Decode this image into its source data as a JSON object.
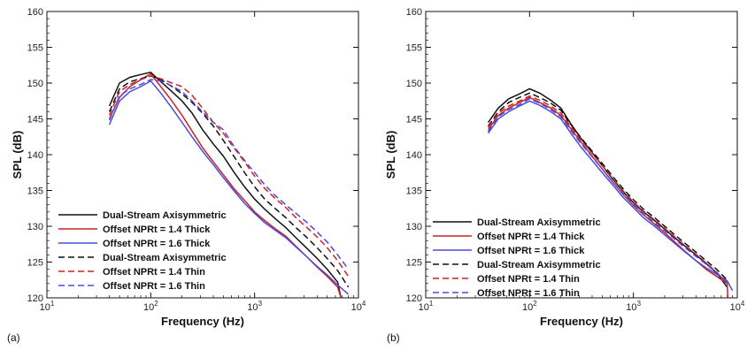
{
  "figure": {
    "panels": [
      "(a)",
      "(b)"
    ]
  },
  "colors": {
    "black": "#111111",
    "red": "#cc2222",
    "blue": "#4a4ae0"
  },
  "chart_data": [
    {
      "type": "line",
      "panel_label": "(a)",
      "xlabel": "Frequency (Hz)",
      "ylabel": "SPL (dB)",
      "xscale": "log",
      "xlim": [
        10,
        10000
      ],
      "ylim": [
        120,
        160
      ],
      "x_ticks": [
        {
          "value": 10,
          "base": "10",
          "exp": "1"
        },
        {
          "value": 100,
          "base": "10",
          "exp": "2"
        },
        {
          "value": 1000,
          "base": "10",
          "exp": "3"
        },
        {
          "value": 10000,
          "base": "10",
          "exp": "4"
        }
      ],
      "y_ticks": [
        120,
        125,
        130,
        135,
        140,
        145,
        150,
        155,
        160
      ],
      "grid": false,
      "legend_position": "lower-left",
      "series": [
        {
          "name": "Dual-Stream Axisymmetric",
          "color": "black",
          "dash": "solid",
          "x": [
            40,
            50,
            63,
            80,
            100,
            125,
            160,
            200,
            250,
            315,
            400,
            500,
            630,
            800,
            1000,
            1250,
            1600,
            2000,
            2500,
            3150,
            4000,
            5000,
            6300,
            6800
          ],
          "y": [
            146.8,
            150.0,
            150.8,
            151.2,
            151.5,
            150.2,
            148.8,
            147.5,
            145.8,
            143.5,
            141.5,
            139.8,
            137.6,
            135.5,
            133.8,
            132.4,
            131.0,
            129.8,
            128.4,
            127.0,
            125.5,
            124.0,
            122.2,
            120.0
          ]
        },
        {
          "name": "Offset NPRt = 1.4 Thick",
          "color": "red",
          "dash": "solid",
          "x": [
            40,
            50,
            63,
            80,
            100,
            125,
            160,
            200,
            250,
            315,
            400,
            500,
            630,
            800,
            1000,
            1250,
            1600,
            2000,
            2500,
            3150,
            4000,
            5000,
            6300,
            6800
          ],
          "y": [
            145.0,
            148.0,
            149.5,
            150.5,
            151.3,
            149.5,
            147.5,
            145.5,
            143.3,
            141.0,
            139.0,
            137.2,
            135.3,
            133.6,
            132.0,
            130.8,
            129.6,
            128.6,
            127.2,
            125.8,
            124.3,
            123.0,
            121.5,
            120.0
          ]
        },
        {
          "name": "Offset NPRt = 1.6 Thick",
          "color": "blue",
          "dash": "solid",
          "x": [
            40,
            50,
            63,
            80,
            100,
            125,
            160,
            200,
            250,
            315,
            400,
            500,
            630,
            800,
            1000,
            1250,
            1600,
            2000,
            2500,
            3150,
            4000,
            5000,
            6300,
            8000
          ],
          "y": [
            144.2,
            147.5,
            148.8,
            149.5,
            150.3,
            148.6,
            146.5,
            144.5,
            142.5,
            140.5,
            138.6,
            136.8,
            135.0,
            133.2,
            131.8,
            130.5,
            129.4,
            128.4,
            127.1,
            125.8,
            124.4,
            123.2,
            121.8,
            120.5
          ]
        },
        {
          "name": "Dual-Stream Axisymmetric",
          "color": "black",
          "dash": "dashed",
          "x": [
            40,
            50,
            63,
            80,
            100,
            125,
            160,
            200,
            250,
            315,
            400,
            500,
            630,
            800,
            1000,
            1250,
            1600,
            2000,
            2500,
            3150,
            4000,
            5000,
            6300,
            8000
          ],
          "y": [
            146.0,
            149.2,
            150.2,
            150.6,
            151.0,
            150.5,
            149.5,
            148.5,
            147.3,
            145.8,
            144.0,
            142.0,
            139.8,
            137.5,
            135.5,
            133.8,
            132.4,
            131.2,
            129.8,
            128.5,
            127.0,
            125.5,
            123.8,
            121.5
          ]
        },
        {
          "name": "Offset NPRt = 1.4 Thin",
          "color": "red",
          "dash": "dashed",
          "x": [
            40,
            50,
            63,
            80,
            100,
            125,
            160,
            200,
            250,
            315,
            400,
            500,
            630,
            800,
            1000,
            1250,
            1600,
            2000,
            2500,
            3150,
            4000,
            5000,
            6300,
            8000
          ],
          "y": [
            145.5,
            148.8,
            149.8,
            150.5,
            151.0,
            150.6,
            150.0,
            149.5,
            148.3,
            146.5,
            144.5,
            143.0,
            141.0,
            139.0,
            137.0,
            135.3,
            133.8,
            132.6,
            131.2,
            129.9,
            128.5,
            127.0,
            125.2,
            123.0
          ]
        },
        {
          "name": "Offset NPRt = 1.6 Thin",
          "color": "blue",
          "dash": "dashed",
          "x": [
            40,
            50,
            63,
            80,
            100,
            125,
            160,
            200,
            250,
            315,
            400,
            500,
            630,
            800,
            1000,
            1250,
            1600,
            2000,
            2500,
            3150,
            4000,
            5000,
            6300,
            8000
          ],
          "y": [
            144.8,
            148.2,
            149.2,
            149.8,
            150.5,
            150.3,
            149.6,
            148.8,
            147.5,
            146.0,
            144.5,
            143.5,
            141.2,
            139.2,
            137.5,
            135.8,
            134.2,
            133.0,
            131.8,
            130.6,
            129.2,
            127.8,
            126.0,
            124.0
          ]
        }
      ]
    },
    {
      "type": "line",
      "panel_label": "(b)",
      "xlabel": "Frequency (Hz)",
      "ylabel": "SPL (dB)",
      "xscale": "log",
      "xlim": [
        10,
        10000
      ],
      "ylim": [
        120,
        160
      ],
      "x_ticks": [
        {
          "value": 10,
          "base": "10",
          "exp": "1"
        },
        {
          "value": 100,
          "base": "10",
          "exp": "2"
        },
        {
          "value": 1000,
          "base": "10",
          "exp": "3"
        },
        {
          "value": 10000,
          "base": "10",
          "exp": "4"
        }
      ],
      "y_ticks": [
        120,
        125,
        130,
        135,
        140,
        145,
        150,
        155,
        160
      ],
      "grid": false,
      "legend_position": "lower-left",
      "series": [
        {
          "name": "Dual-Stream Axisymmetric",
          "color": "black",
          "dash": "solid",
          "x": [
            40,
            50,
            63,
            80,
            100,
            125,
            160,
            200,
            250,
            315,
            400,
            500,
            630,
            800,
            1000,
            1250,
            1600,
            2000,
            2500,
            3150,
            4000,
            5000,
            6300,
            8000
          ],
          "y": [
            144.5,
            146.5,
            147.8,
            148.5,
            149.2,
            148.6,
            147.6,
            146.5,
            144.3,
            142.2,
            140.3,
            138.5,
            136.6,
            134.8,
            133.3,
            132.0,
            130.8,
            129.6,
            128.4,
            127.2,
            126.0,
            124.8,
            123.5,
            121.5
          ]
        },
        {
          "name": "Offset NPRt = 1.4 Thick",
          "color": "red",
          "dash": "solid",
          "x": [
            40,
            50,
            63,
            80,
            100,
            125,
            160,
            200,
            250,
            315,
            400,
            500,
            630,
            800,
            1000,
            1250,
            1600,
            2000,
            2500,
            3150,
            4000,
            5000,
            6300,
            8000,
            8100
          ],
          "y": [
            143.5,
            145.5,
            146.5,
            147.3,
            148.0,
            147.3,
            146.5,
            145.5,
            143.6,
            141.7,
            139.8,
            138.0,
            136.2,
            134.4,
            132.9,
            131.6,
            130.3,
            129.1,
            127.8,
            126.5,
            125.2,
            124.0,
            123.0,
            122.0,
            120.0
          ]
        },
        {
          "name": "Offset NPRt = 1.6 Thick",
          "color": "blue",
          "dash": "solid",
          "x": [
            40,
            50,
            63,
            80,
            100,
            125,
            160,
            200,
            250,
            315,
            400,
            500,
            630,
            800,
            1000,
            1250,
            1600,
            2000,
            2500,
            3150,
            4000,
            5000,
            6300,
            8000,
            9000
          ],
          "y": [
            143.0,
            145.0,
            146.0,
            146.8,
            147.5,
            146.9,
            146.0,
            145.0,
            143.0,
            141.0,
            139.2,
            137.5,
            135.8,
            134.0,
            132.6,
            131.2,
            130.0,
            128.8,
            127.6,
            126.4,
            125.2,
            124.2,
            123.3,
            122.4,
            121.0
          ]
        },
        {
          "name": "Dual-Stream Axisymmetric",
          "color": "black",
          "dash": "dashed",
          "x": [
            40,
            50,
            63,
            80,
            100,
            125,
            160,
            200,
            250,
            315,
            400,
            500,
            630,
            800,
            1000,
            1250,
            1600,
            2000,
            2500,
            3150,
            4000,
            5000,
            6300,
            8000
          ],
          "y": [
            144.0,
            146.0,
            147.3,
            148.0,
            148.6,
            148.0,
            147.2,
            146.2,
            144.2,
            142.3,
            140.5,
            138.8,
            137.0,
            135.2,
            133.7,
            132.4,
            131.2,
            130.0,
            128.8,
            127.6,
            126.4,
            125.2,
            124.0,
            122.5
          ]
        },
        {
          "name": "Offset NPRt = 1.4 Thin",
          "color": "red",
          "dash": "dashed",
          "x": [
            40,
            50,
            63,
            80,
            100,
            125,
            160,
            200,
            250,
            315,
            400,
            500,
            630,
            800,
            1000,
            1250,
            1600,
            2000,
            2500,
            3150,
            4000,
            5000,
            6300,
            8000
          ],
          "y": [
            143.8,
            145.8,
            146.8,
            147.5,
            148.2,
            147.6,
            146.8,
            145.8,
            143.9,
            142.0,
            140.2,
            138.5,
            136.7,
            134.9,
            133.4,
            132.1,
            130.9,
            129.7,
            128.5,
            127.3,
            126.1,
            124.9,
            123.6,
            122.0
          ]
        },
        {
          "name": "Offset NPRt = 1.6 Thin",
          "color": "blue",
          "dash": "dashed",
          "x": [
            40,
            50,
            63,
            80,
            100,
            125,
            160,
            200,
            250,
            315,
            400,
            500,
            630,
            800,
            1000,
            1250,
            1600,
            2000,
            2500,
            3150,
            4000,
            5000,
            6300,
            8000
          ],
          "y": [
            143.2,
            145.3,
            146.3,
            147.0,
            147.8,
            147.2,
            146.3,
            145.3,
            143.4,
            141.5,
            139.7,
            138.0,
            136.2,
            134.5,
            133.0,
            131.7,
            130.5,
            129.4,
            128.2,
            127.0,
            125.8,
            124.7,
            123.5,
            122.2
          ]
        }
      ]
    }
  ]
}
